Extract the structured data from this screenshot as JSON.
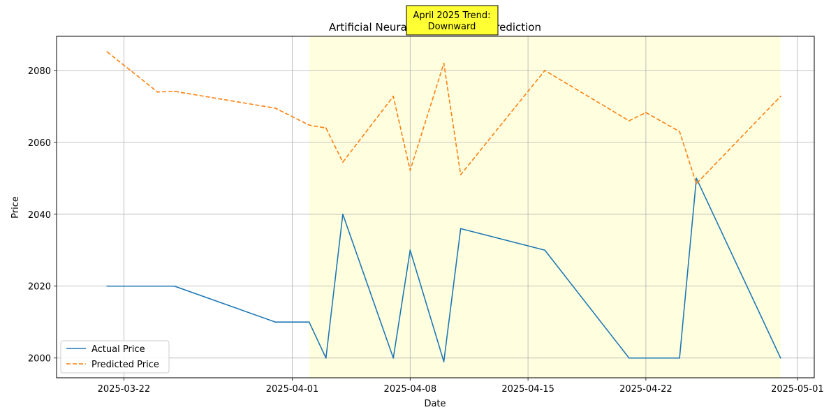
{
  "chart_data": {
    "type": "line",
    "title": "Artificial Neural Network Price Prediction",
    "xlabel": "Date",
    "ylabel": "Price",
    "xlim": [
      "2025-03-18",
      "2025-05-02"
    ],
    "ylim": [
      1994.5,
      2089.5
    ],
    "x_ticks": [
      "2025-03-22",
      "2025-04-01",
      "2025-04-08",
      "2025-04-15",
      "2025-04-22",
      "2025-05-01"
    ],
    "y_ticks": [
      2000,
      2020,
      2040,
      2060,
      2080
    ],
    "grid": true,
    "legend_position": "lower-left",
    "highlight_span": {
      "start": "2025-04-02",
      "end": "2025-04-30",
      "color": "#ffffe0"
    },
    "annotation": {
      "lines": [
        "April 2025 Trend:",
        "Downward"
      ],
      "background": "#ffff33",
      "position": "top-center"
    },
    "series": [
      {
        "name": "Actual Price",
        "color": "#1f77b4",
        "style": "solid",
        "points": [
          [
            "2025-03-21",
            2020
          ],
          [
            "2025-03-25",
            2020
          ],
          [
            "2025-03-31",
            2010
          ],
          [
            "2025-04-02",
            2010
          ],
          [
            "2025-04-03",
            2000
          ],
          [
            "2025-04-04",
            2040
          ],
          [
            "2025-04-07",
            2000
          ],
          [
            "2025-04-08",
            2030
          ],
          [
            "2025-04-10",
            1999
          ],
          [
            "2025-04-11",
            2036
          ],
          [
            "2025-04-16",
            2030
          ],
          [
            "2025-04-21",
            2000
          ],
          [
            "2025-04-24",
            2000
          ],
          [
            "2025-04-25",
            2050
          ],
          [
            "2025-04-30",
            2000
          ]
        ]
      },
      {
        "name": "Predicted Price",
        "color": "#ff7f0e",
        "style": "dashed",
        "points": [
          [
            "2025-03-21",
            2085.2
          ],
          [
            "2025-03-24",
            2074
          ],
          [
            "2025-03-25",
            2074.2
          ],
          [
            "2025-03-31",
            2069.5
          ],
          [
            "2025-04-02",
            2064.8
          ],
          [
            "2025-04-03",
            2064
          ],
          [
            "2025-04-04",
            2054.5
          ],
          [
            "2025-04-07",
            2072.8
          ],
          [
            "2025-04-08",
            2052.2
          ],
          [
            "2025-04-10",
            2082
          ],
          [
            "2025-04-11",
            2051
          ],
          [
            "2025-04-16",
            2080
          ],
          [
            "2025-04-21",
            2066
          ],
          [
            "2025-04-22",
            2068.3
          ],
          [
            "2025-04-24",
            2063
          ],
          [
            "2025-04-25",
            2048.5
          ],
          [
            "2025-04-30",
            2072.8
          ]
        ]
      }
    ]
  }
}
